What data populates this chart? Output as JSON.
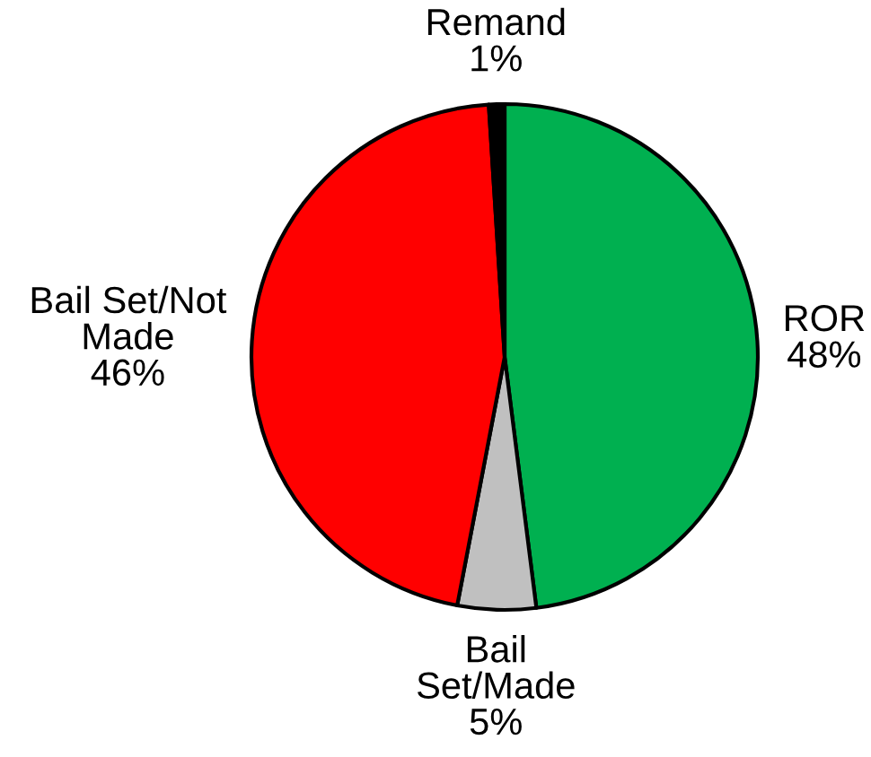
{
  "chart_data": {
    "type": "pie",
    "categories": [
      "ROR",
      "Bail\nSet/Made",
      "Bail Set/Not\nMade",
      "Remand"
    ],
    "values": [
      48,
      5,
      46,
      1
    ],
    "colors": [
      "#00b050",
      "#c0c0c0",
      "#ff0000",
      "#000000"
    ],
    "value_labels": [
      "48%",
      "5%",
      "46%",
      "1%"
    ]
  }
}
